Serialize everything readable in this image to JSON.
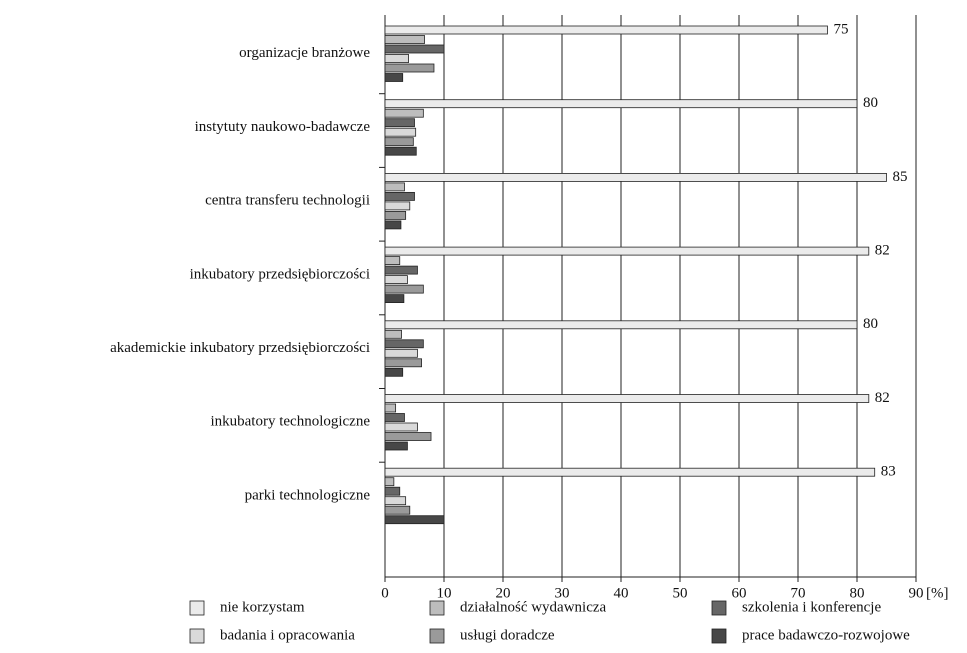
{
  "chart_data": {
    "type": "bar",
    "orientation": "horizontal",
    "xlabel": "[%]",
    "categories": [
      "organizacje branżowe",
      "instytuty naukowo-badawcze",
      "centra transferu technologii",
      "inkubatory przedsiębiorczości",
      "akademickie inkubatory przedsiębiorczości",
      "inkubatory technologiczne",
      "parki technologiczne"
    ],
    "series": [
      {
        "name": "nie korzystam",
        "color": "#ebebeb",
        "values": [
          75,
          80,
          85,
          82,
          80,
          82,
          83
        ]
      },
      {
        "name": "działalność wydawnicza",
        "color": "#bdbdbd",
        "values": [
          6.7,
          6.5,
          3.3,
          2.5,
          2.8,
          1.8,
          1.5
        ]
      },
      {
        "name": "szkolenia i konferencje",
        "color": "#666666",
        "values": [
          10,
          5,
          5,
          5.5,
          6.5,
          3.3,
          2.5
        ]
      },
      {
        "name": "badania i opracowania",
        "color": "#d9d9d9",
        "values": [
          4,
          5.2,
          4.2,
          3.8,
          5.5,
          5.5,
          3.5
        ]
      },
      {
        "name": "usługi doradcze",
        "color": "#9a9a9a",
        "values": [
          8.3,
          4.8,
          3.5,
          6.5,
          6.2,
          7.8,
          4.2
        ]
      },
      {
        "name": "prace badawczo-rozwojowe",
        "color": "#474747",
        "values": [
          3,
          5.3,
          2.7,
          3.2,
          3,
          3.8,
          10
        ]
      }
    ],
    "labeled_series": 0,
    "xlim": [
      0,
      90
    ],
    "xticks": [
      0,
      10,
      20,
      30,
      40,
      50,
      60,
      70,
      80,
      90
    ],
    "grid": true
  }
}
